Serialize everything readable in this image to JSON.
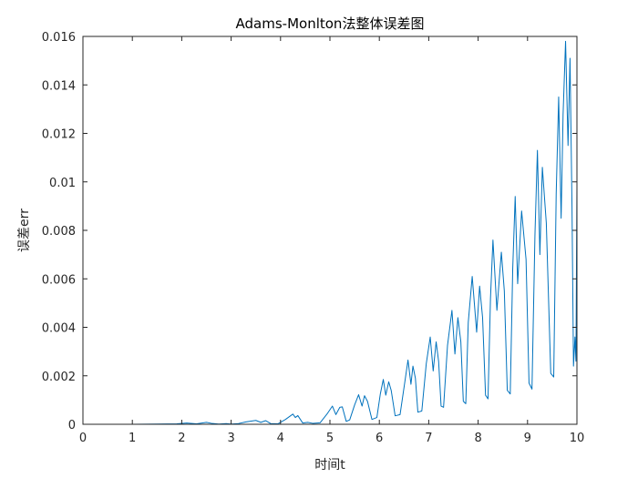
{
  "chart_data": {
    "type": "line",
    "title": "Adams-Monlton法整体误差图",
    "xlabel": "时间t",
    "ylabel": "误差err",
    "xlim": [
      0,
      10
    ],
    "ylim": [
      0,
      0.016
    ],
    "xticks": [
      0,
      1,
      2,
      3,
      4,
      5,
      6,
      7,
      8,
      9,
      10
    ],
    "yticks": [
      0,
      0.002,
      0.004,
      0.006,
      0.008,
      0.01,
      0.012,
      0.014,
      0.016
    ],
    "ytick_labels": [
      "0",
      "0.002",
      "0.004",
      "0.006",
      "0.008",
      "0.01",
      "0.012",
      "0.014",
      "0.016"
    ],
    "grid": false,
    "line_color": "#0072BD",
    "series": [
      {
        "x": [
          0,
          0.5,
          1,
          1.5,
          1.9,
          2.1,
          2.3,
          2.5,
          2.6,
          2.75,
          2.9,
          3.0,
          3.15,
          3.3,
          3.5,
          3.6,
          3.7,
          3.8,
          3.95,
          4.1,
          4.25,
          4.3,
          4.35,
          4.45,
          4.55,
          4.65,
          4.8,
          4.95,
          5.05,
          5.12,
          5.2,
          5.25,
          5.33,
          5.4,
          5.5,
          5.58,
          5.65,
          5.7,
          5.76,
          5.85,
          5.95,
          6.02,
          6.08,
          6.13,
          6.19,
          6.24,
          6.32,
          6.42,
          6.52,
          6.58,
          6.64,
          6.68,
          6.73,
          6.78,
          6.86,
          6.95,
          7.03,
          7.09,
          7.15,
          7.2,
          7.25,
          7.3,
          7.38,
          7.47,
          7.53,
          7.59,
          7.65,
          7.7,
          7.75,
          7.8,
          7.88,
          7.97,
          8.03,
          8.09,
          8.15,
          8.2,
          8.25,
          8.3,
          8.38,
          8.47,
          8.53,
          8.59,
          8.65,
          8.7,
          8.75,
          8.8,
          8.88,
          8.97,
          9.03,
          9.09,
          9.15,
          9.2,
          9.25,
          9.3,
          9.38,
          9.47,
          9.53,
          9.58,
          9.63,
          9.68,
          9.72,
          9.77,
          9.82,
          9.86,
          9.9,
          9.93,
          9.96,
          9.98,
          10.0
        ],
        "y": [
          0,
          0,
          0,
          1e-05,
          2e-05,
          5e-05,
          2e-05,
          8e-05,
          4e-05,
          1e-05,
          3e-05,
          1e-05,
          3e-05,
          0.0001,
          0.00016,
          8e-05,
          0.00015,
          3e-05,
          2e-05,
          0.0002,
          0.00042,
          0.00028,
          0.00036,
          5e-05,
          8e-05,
          4e-05,
          6e-05,
          0.00045,
          0.00075,
          0.0004,
          0.0007,
          0.00072,
          0.00012,
          0.00018,
          0.0008,
          0.00122,
          0.00075,
          0.00118,
          0.00095,
          0.0002,
          0.00028,
          0.00125,
          0.00185,
          0.0012,
          0.00175,
          0.0014,
          0.00035,
          0.0004,
          0.0018,
          0.00265,
          0.00165,
          0.0024,
          0.0019,
          0.0005,
          0.00055,
          0.0025,
          0.0036,
          0.0022,
          0.0034,
          0.0026,
          0.00075,
          0.0007,
          0.00325,
          0.0047,
          0.0029,
          0.0044,
          0.0034,
          0.00095,
          0.00085,
          0.0042,
          0.0061,
          0.0038,
          0.0057,
          0.0044,
          0.0012,
          0.00105,
          0.0052,
          0.0076,
          0.0047,
          0.0071,
          0.0055,
          0.0014,
          0.00125,
          0.0064,
          0.0094,
          0.0058,
          0.0088,
          0.0068,
          0.0017,
          0.00145,
          0.0078,
          0.0113,
          0.007,
          0.0106,
          0.0083,
          0.0021,
          0.00195,
          0.0095,
          0.0135,
          0.0085,
          0.0128,
          0.0158,
          0.0115,
          0.0151,
          0.009,
          0.0024,
          0.0036,
          0.0026,
          0.0098
        ]
      }
    ]
  }
}
